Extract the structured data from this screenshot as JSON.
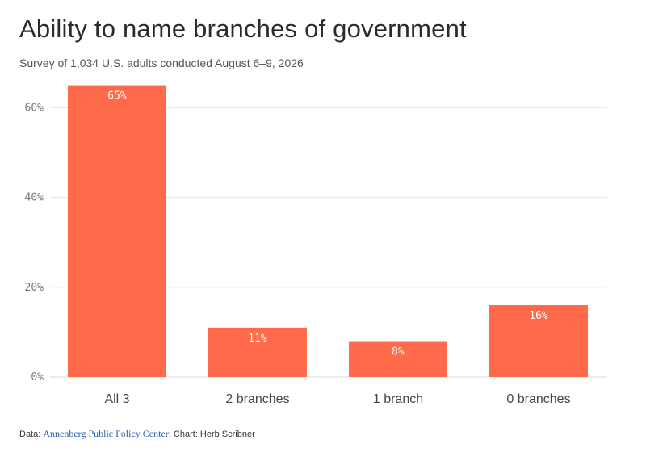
{
  "header": {
    "title": "Ability to name branches of government",
    "subtitle": "Survey of 1,034 U.S. adults conducted August 6–9, 2026"
  },
  "footer": {
    "data_prefix": "Data: ",
    "source_link": "Annenberg Public Policy Center",
    "chart_credit": "; Chart: Herb Scribner"
  },
  "colors": {
    "bar": "#ff6b4a",
    "grid": "#e6e6e6",
    "axis": "#d9d9d9"
  },
  "chart_data": {
    "type": "bar",
    "title": "Ability to name branches of government",
    "subtitle": "Survey of 1,034 U.S. adults conducted August 6–9, 2026",
    "categories": [
      "All 3",
      "2 branches",
      "1 branch",
      "0 branches"
    ],
    "values": [
      65,
      11,
      8,
      16
    ],
    "data_labels": [
      "65%",
      "11%",
      "8%",
      "16%"
    ],
    "yticks": [
      0,
      20,
      40,
      60
    ],
    "ytick_labels": [
      "0%",
      "20%",
      "40%",
      "60%"
    ],
    "ylim": [
      0,
      66
    ],
    "xlabel": "",
    "ylabel": "",
    "grid": true,
    "legend": "none"
  }
}
